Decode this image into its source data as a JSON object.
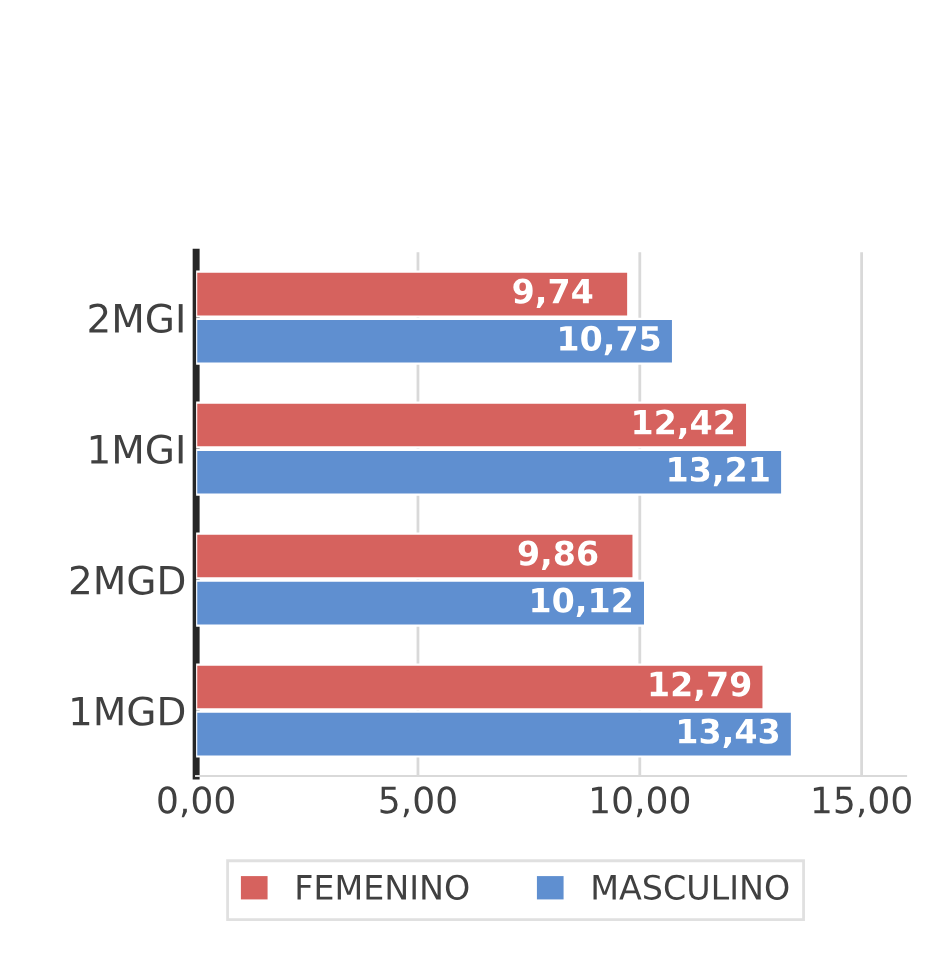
{
  "chart_data": {
    "type": "bar",
    "orientation": "horizontal",
    "categories": [
      "2MGI",
      "1MGI",
      "2MGD",
      "1MGD"
    ],
    "series": [
      {
        "name": "FEMENINO",
        "color": "#d6625e",
        "values": [
          9.74,
          12.42,
          9.86,
          12.79
        ],
        "value_labels": [
          "9,74",
          "12,42",
          "9,86",
          "12,79"
        ]
      },
      {
        "name": "MASCULINO",
        "color": "#5f8fd0",
        "values": [
          10.75,
          13.21,
          10.12,
          13.43
        ],
        "value_labels": [
          "10,75",
          "13,21",
          "10,12",
          "13,43"
        ]
      }
    ],
    "xlim": [
      0,
      16
    ],
    "xticks": [
      {
        "value": 0,
        "label": "0,00"
      },
      {
        "value": 5,
        "label": "5,00"
      },
      {
        "value": 10,
        "label": "10,00"
      },
      {
        "value": 15,
        "label": "15,00"
      }
    ],
    "grid": "x",
    "legend": "bottom"
  }
}
